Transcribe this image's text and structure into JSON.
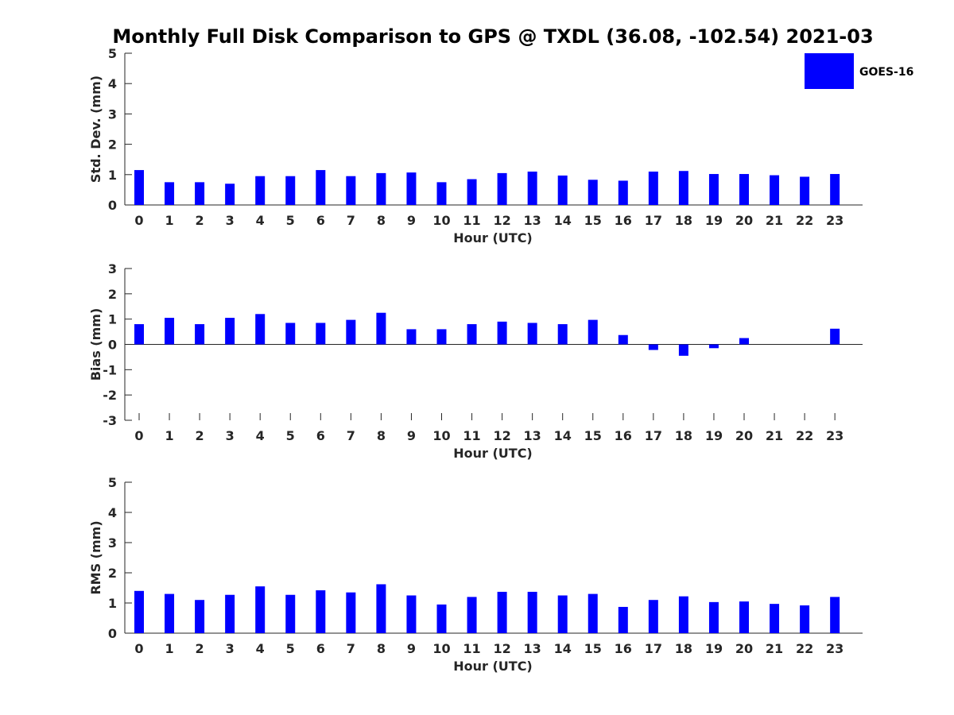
{
  "title": "Monthly Full Disk Comparison to GPS @ TXDL (36.08, -102.54) 2021-03",
  "legend": {
    "label": "GOES-16",
    "color": "#0000ff",
    "placement": "top-right"
  },
  "chart_data": [
    {
      "type": "bar",
      "name": "stddev",
      "ylabel": "Std. Dev. (mm)",
      "xlabel": "Hour (UTC)",
      "ylim": [
        0,
        5
      ],
      "yticks": [
        "0",
        "1",
        "2",
        "3",
        "4",
        "5"
      ],
      "categories": [
        "0",
        "1",
        "2",
        "3",
        "4",
        "5",
        "6",
        "7",
        "8",
        "9",
        "10",
        "11",
        "12",
        "13",
        "14",
        "15",
        "16",
        "17",
        "18",
        "19",
        "20",
        "21",
        "22",
        "23"
      ],
      "series": [
        {
          "name": "GOES-16",
          "color": "#0000ff",
          "values": [
            1.15,
            0.75,
            0.75,
            0.7,
            0.95,
            0.95,
            1.15,
            0.95,
            1.05,
            1.07,
            0.75,
            0.85,
            1.05,
            1.1,
            0.97,
            0.83,
            0.8,
            1.1,
            1.12,
            1.02,
            1.02,
            0.98,
            0.93,
            1.02
          ]
        }
      ]
    },
    {
      "type": "bar",
      "name": "bias",
      "ylabel": "Bias (mm)",
      "xlabel": "Hour (UTC)",
      "ylim": [
        -3,
        3
      ],
      "yticks": [
        "-3",
        "-2",
        "-1",
        "0",
        "1",
        "2",
        "3"
      ],
      "categories": [
        "0",
        "1",
        "2",
        "3",
        "4",
        "5",
        "6",
        "7",
        "8",
        "9",
        "10",
        "11",
        "12",
        "13",
        "14",
        "15",
        "16",
        "17",
        "18",
        "19",
        "20",
        "21",
        "22",
        "23"
      ],
      "series": [
        {
          "name": "GOES-16",
          "color": "#0000ff",
          "values": [
            0.8,
            1.05,
            0.8,
            1.05,
            1.2,
            0.85,
            0.85,
            0.97,
            1.25,
            0.6,
            0.6,
            0.8,
            0.9,
            0.85,
            0.8,
            0.97,
            0.37,
            -0.22,
            -0.45,
            -0.15,
            0.25,
            0.0,
            0.0,
            0.62
          ]
        }
      ]
    },
    {
      "type": "bar",
      "name": "rms",
      "ylabel": "RMS (mm)",
      "xlabel": "Hour (UTC)",
      "ylim": [
        0,
        5
      ],
      "yticks": [
        "0",
        "1",
        "2",
        "3",
        "4",
        "5"
      ],
      "categories": [
        "0",
        "1",
        "2",
        "3",
        "4",
        "5",
        "6",
        "7",
        "8",
        "9",
        "10",
        "11",
        "12",
        "13",
        "14",
        "15",
        "16",
        "17",
        "18",
        "19",
        "20",
        "21",
        "22",
        "23"
      ],
      "series": [
        {
          "name": "GOES-16",
          "color": "#0000ff",
          "values": [
            1.4,
            1.3,
            1.1,
            1.27,
            1.55,
            1.27,
            1.42,
            1.35,
            1.62,
            1.25,
            0.95,
            1.2,
            1.37,
            1.37,
            1.25,
            1.3,
            0.87,
            1.1,
            1.22,
            1.03,
            1.05,
            0.97,
            0.92,
            1.2
          ]
        }
      ]
    }
  ]
}
